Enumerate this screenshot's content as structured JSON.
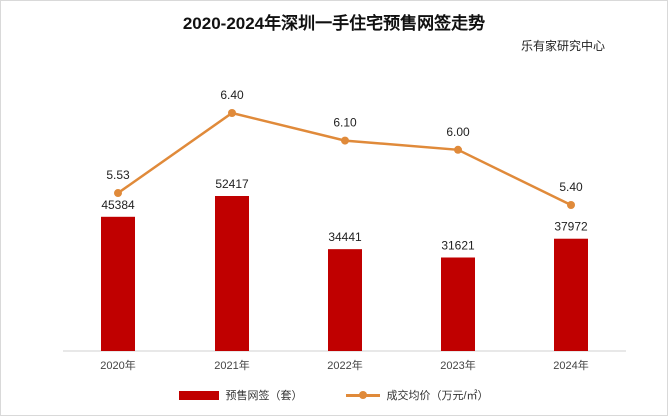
{
  "chart_data": {
    "type": "bar",
    "title": "2020-2024年深圳一手住宅预售网签走势",
    "source": "乐有家研究中心",
    "categories": [
      "2020年",
      "2021年",
      "2022年",
      "2023年",
      "2024年"
    ],
    "series": [
      {
        "name": "预售网签（套）",
        "type": "bar",
        "color": "#c00000",
        "values": [
          45384,
          52417,
          34441,
          31621,
          37972
        ],
        "labels": [
          "45384",
          "52417",
          "34441",
          "31621",
          "37972"
        ]
      },
      {
        "name": "成交均价（万元/㎡）",
        "type": "line",
        "color": "#e08a3a",
        "values": [
          5.53,
          6.4,
          6.1,
          6.0,
          5.4
        ],
        "labels": [
          "5.53",
          "6.40",
          "6.10",
          "6.00",
          "5.40"
        ]
      }
    ],
    "grid": false,
    "legend_position": "bottom"
  }
}
